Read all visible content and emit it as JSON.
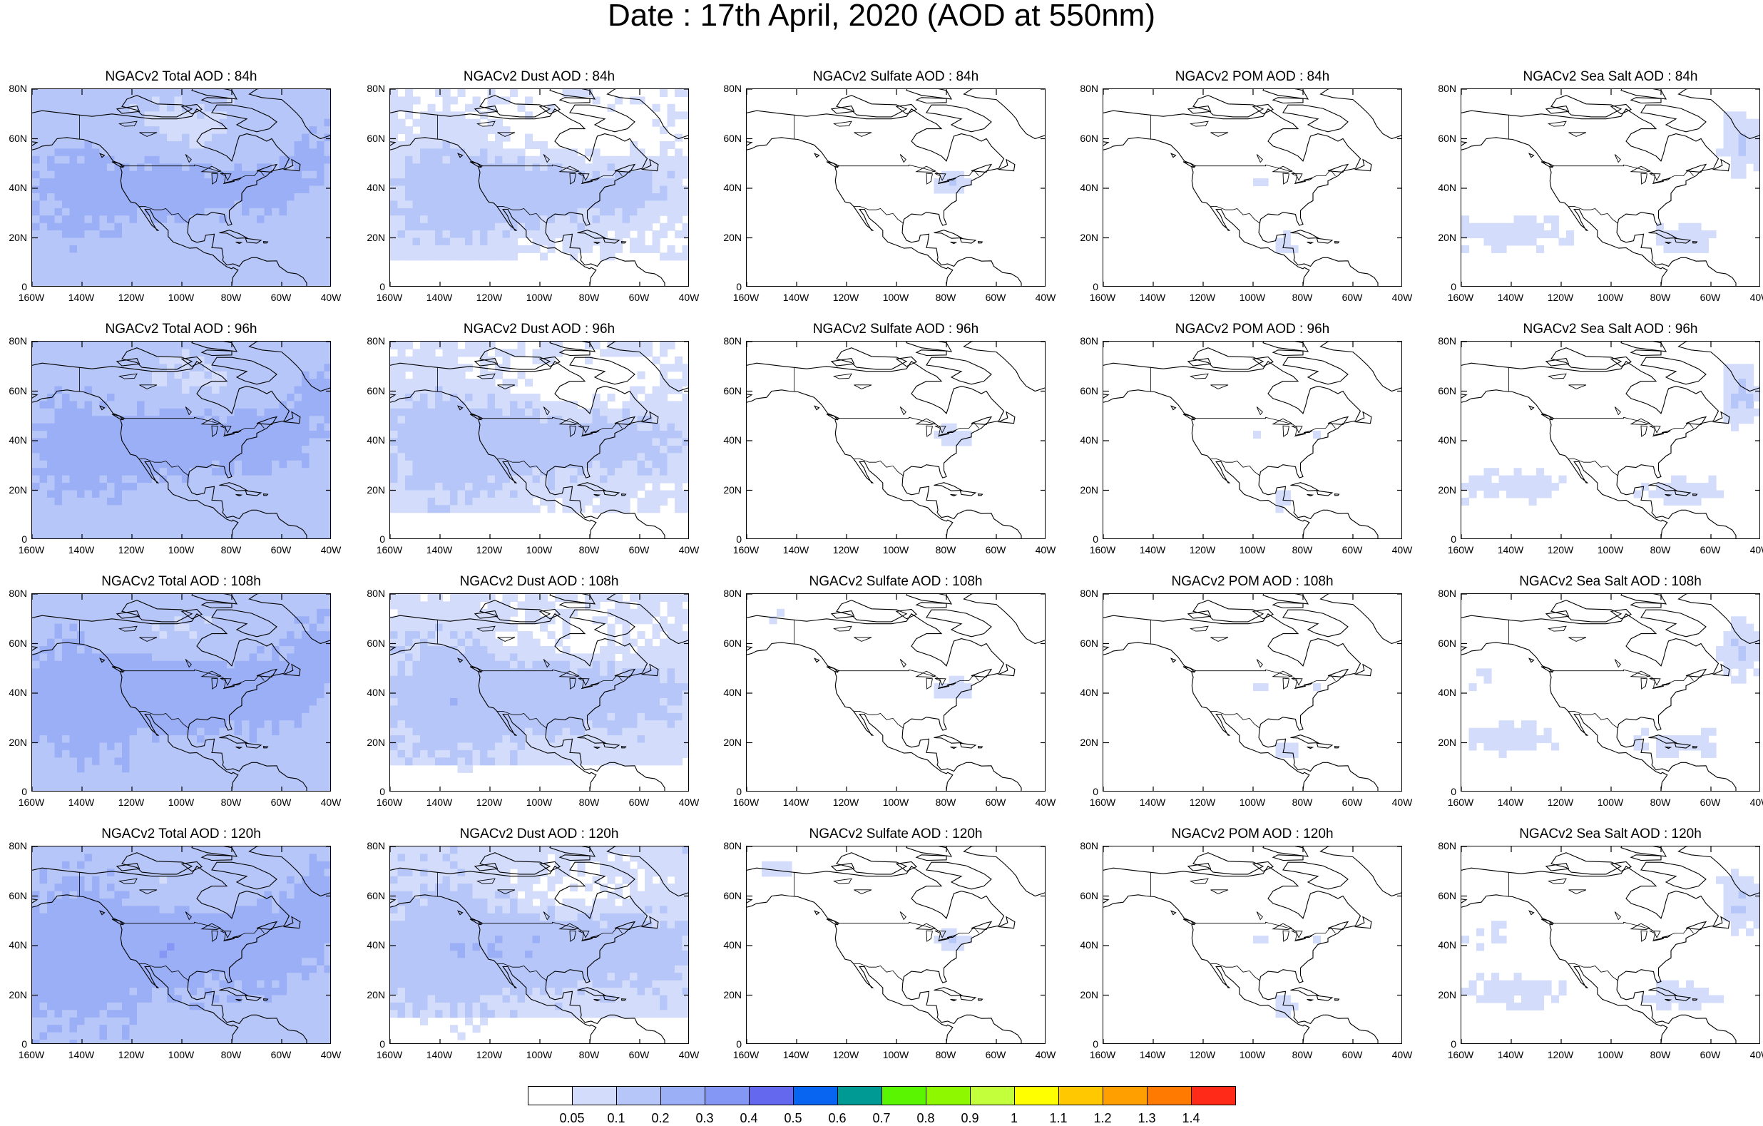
{
  "title": "Date : 17th April, 2020 (AOD at 550nm)",
  "panel_titles": [
    [
      "NGACv2 Total AOD : 84h",
      "NGACv2 Dust AOD : 84h",
      "NGACv2 Sulfate AOD : 84h",
      "NGACv2 POM AOD : 84h",
      "NGACv2 Sea Salt AOD : 84h"
    ],
    [
      "NGACv2 Total AOD : 96h",
      "NGACv2 Dust AOD : 96h",
      "NGACv2 Sulfate AOD : 96h",
      "NGACv2 POM AOD : 96h",
      "NGACv2 Sea Salt AOD : 96h"
    ],
    [
      "NGACv2 Total AOD : 108h",
      "NGACv2 Dust AOD : 108h",
      "NGACv2 Sulfate AOD : 108h",
      "NGACv2 POM AOD : 108h",
      "NGACv2 Sea Salt AOD : 108h"
    ],
    [
      "NGACv2 Total AOD : 120h",
      "NGACv2 Dust AOD : 120h",
      "NGACv2 Sulfate AOD : 120h",
      "NGACv2 POM AOD : 120h",
      "NGACv2 Sea Salt  AOD : 120h"
    ]
  ],
  "species_keys": [
    "total",
    "dust",
    "sulfate",
    "pom",
    "seasalt"
  ],
  "lat_ticks": [
    "80N",
    "60N",
    "40N",
    "20N",
    "0"
  ],
  "lon_ticks": [
    "160W",
    "140W",
    "120W",
    "100W",
    "80W",
    "60W",
    "40W"
  ],
  "colorbar": {
    "colors": [
      "#ffffff",
      "#d3ddfb",
      "#b7c6f8",
      "#9baff6",
      "#8597f4",
      "#6468ee",
      "#0765f2",
      "#009a95",
      "#5af501",
      "#8ef800",
      "#c4ff3c",
      "#ffff00",
      "#ffc800",
      "#ffa000",
      "#ff7a00",
      "#ff2a17"
    ],
    "labels": [
      "0.05",
      "0.1",
      "0.2",
      "0.3",
      "0.4",
      "0.5",
      "0.6",
      "0.7",
      "0.8",
      "0.9",
      "1",
      "1.1",
      "1.2",
      "1.3",
      "1.4"
    ]
  }
}
